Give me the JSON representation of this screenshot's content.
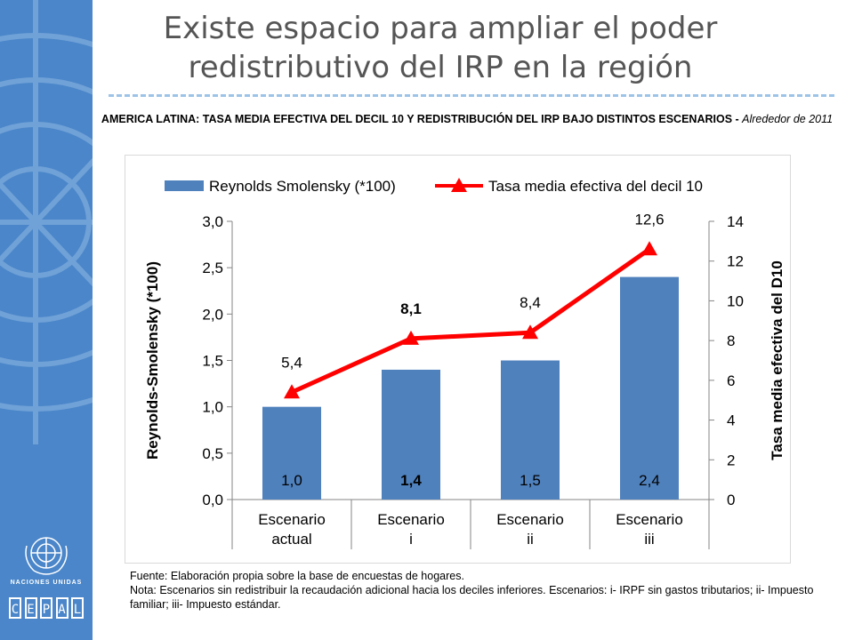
{
  "page": {
    "title": "Existe espacio para ampliar el poder redistributivo del IRP en la región",
    "chart_heading_bold": "AMERICA LATINA: TASA MEDIA EFECTIVA DEL DECIL 10 Y REDISTRIBUCIÓN DEL IRP BAJO DISTINTOS ESCENARIOS - ",
    "chart_heading_italic": "Alrededor de 2011",
    "source": "Fuente: Elaboración propia sobre la base de encuestas de hogares.",
    "note": "Nota: Escenarios sin redistribuir la recaudación adicional hacia los deciles inferiores. Escenarios: i- IRPF sin gastos tributarios; ii- Impuesto familiar; iii- Impuesto estándar."
  },
  "sidebar": {
    "un_label": "NACIONES UNIDAS",
    "cepal_letters": [
      "C",
      "E",
      "P",
      "A",
      "L"
    ],
    "colors": {
      "background": "#4a86c9"
    }
  },
  "chart_data": {
    "type": "bar",
    "categories": [
      [
        "Escenario",
        "actual"
      ],
      [
        "Escenario",
        "i"
      ],
      [
        "Escenario",
        "ii"
      ],
      [
        "Escenario",
        "iii"
      ]
    ],
    "series": [
      {
        "name": "Reynolds Smolensky (*100)",
        "type": "bar",
        "axis": "left",
        "values": [
          1.0,
          1.4,
          1.5,
          2.4
        ],
        "labels": [
          "1,0",
          "1,4",
          "1,5",
          "2,4"
        ],
        "label_bold": [
          false,
          true,
          false,
          false
        ],
        "color": "#4f81bd"
      },
      {
        "name": "Tasa media efectiva del decil 10",
        "type": "line",
        "axis": "right",
        "values": [
          5.4,
          8.1,
          8.4,
          12.6
        ],
        "labels": [
          "5,4",
          "8,1",
          "8,4",
          "12,6"
        ],
        "label_bold": [
          false,
          true,
          false,
          false
        ],
        "color": "#ff0000"
      }
    ],
    "ylabel": "Reynolds-Smolensky (*100)",
    "y2label": "Tasa media efectiva del D10",
    "ylim": [
      0,
      3
    ],
    "y2lim": [
      0,
      14
    ],
    "yticks": [
      "0,0",
      "0,5",
      "1,0",
      "1,5",
      "2,0",
      "2,5",
      "3,0"
    ],
    "y2ticks": [
      "0",
      "2",
      "4",
      "6",
      "8",
      "10",
      "12",
      "14"
    ],
    "legend": "top",
    "grid": false
  }
}
